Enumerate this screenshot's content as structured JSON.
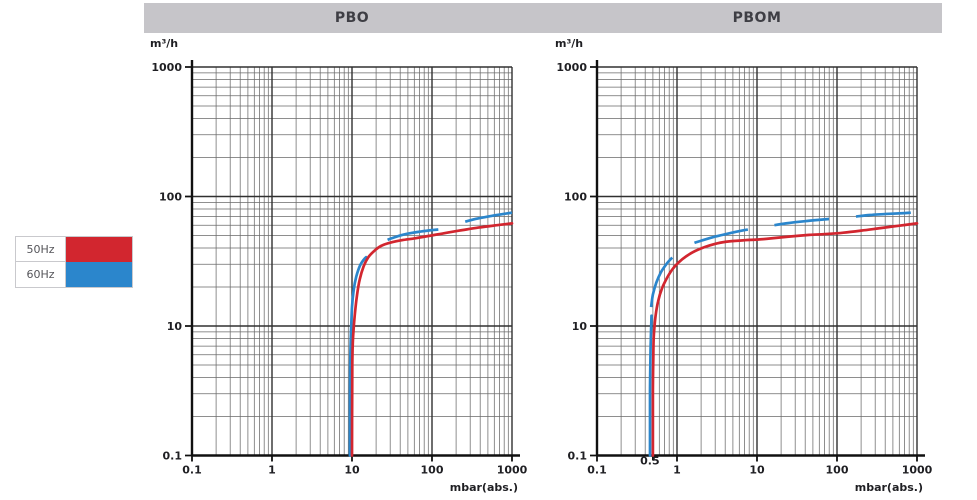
{
  "header": {
    "bar_color": "#c6c5c9",
    "titles": [
      {
        "label": "PBO"
      },
      {
        "label": "PBOM"
      }
    ]
  },
  "legend": {
    "items": [
      {
        "label": "50Hz",
        "color": "#d2262f"
      },
      {
        "label": "60Hz",
        "color": "#2b86cc"
      }
    ]
  },
  "chart_data": [
    {
      "type": "line",
      "title": "PBO",
      "x_label": "mbar(abs.)",
      "y_label": "m³/h",
      "x_scale": "log",
      "y_scale": "log",
      "xlim": [
        0.1,
        1000
      ],
      "ylim": [
        0.1,
        1000
      ],
      "x_tick_labels": [
        "0.1",
        "1",
        "10",
        "100",
        "1000"
      ],
      "y_tick_labels": [
        "1000",
        "100",
        "10",
        "0.1"
      ],
      "grid": "both-log-minor",
      "series": [
        {
          "name": "50Hz",
          "color": "#d2262f",
          "line_style": "solid",
          "points": [
            [
              10,
              0.1
            ],
            [
              10.05,
              1
            ],
            [
              10.1,
              2.5
            ],
            [
              10.2,
              5
            ],
            [
              10.4,
              8
            ],
            [
              10.8,
              12
            ],
            [
              11.5,
              17
            ],
            [
              12.5,
              23
            ],
            [
              14,
              29
            ],
            [
              16,
              34
            ],
            [
              19,
              38
            ],
            [
              23,
              41.5
            ],
            [
              30,
              44
            ],
            [
              42,
              46
            ],
            [
              60,
              47.5
            ],
            [
              90,
              49.5
            ],
            [
              140,
              52
            ],
            [
              220,
              54.5
            ],
            [
              380,
              57.5
            ],
            [
              650,
              60
            ],
            [
              1000,
              62
            ]
          ]
        },
        {
          "name": "60Hz",
          "color": "#2b86cc",
          "line_style": "solid_steep_then_long_dashes",
          "solid_points": [
            [
              9.4,
              0.1
            ],
            [
              9.45,
              1
            ],
            [
              9.5,
              2.5
            ],
            [
              9.6,
              5
            ],
            [
              9.75,
              9
            ],
            [
              10,
              14
            ],
            [
              10.5,
              19
            ],
            [
              11.3,
              24
            ],
            [
              12.5,
              29
            ],
            [
              14,
              32.5
            ],
            [
              15,
              34
            ]
          ],
          "dashed_points": [
            [
              15,
              34
            ],
            [
              17,
              37.5
            ],
            [
              20,
              41
            ],
            [
              25,
              44.8
            ],
            [
              31,
              47.5
            ],
            [
              45,
              51
            ],
            [
              70,
              53.5
            ],
            [
              100,
              55
            ],
            [
              140,
              56.5
            ],
            [
              220,
              62
            ],
            [
              330,
              66.5
            ],
            [
              500,
              70
            ],
            [
              700,
              72.5
            ],
            [
              1000,
              75
            ]
          ]
        }
      ]
    },
    {
      "type": "line",
      "title": "PBOM",
      "x_label": "mbar(abs.)",
      "y_label": "m³/h",
      "x_scale": "log",
      "y_scale": "log",
      "xlim": [
        0.1,
        1000
      ],
      "ylim": [
        0.1,
        1000
      ],
      "x_tick_labels": [
        "0.1",
        "1",
        "10",
        "100",
        "1000"
      ],
      "extra_x_tick": {
        "label": "0.5",
        "value": 0.5
      },
      "y_tick_labels": [
        "1000",
        "100",
        "10",
        "0.1"
      ],
      "grid": "both-log-minor",
      "series": [
        {
          "name": "50Hz",
          "color": "#d2262f",
          "line_style": "solid",
          "points": [
            [
              0.5,
              0.1
            ],
            [
              0.5,
              1
            ],
            [
              0.505,
              3
            ],
            [
              0.51,
              6
            ],
            [
              0.52,
              9
            ],
            [
              0.54,
              12
            ],
            [
              0.58,
              15.5
            ],
            [
              0.65,
              19.5
            ],
            [
              0.75,
              23.5
            ],
            [
              0.88,
              27.5
            ],
            [
              1.05,
              31
            ],
            [
              1.3,
              34.5
            ],
            [
              1.7,
              38
            ],
            [
              2.3,
              41
            ],
            [
              3.2,
              43.5
            ],
            [
              4.5,
              45
            ],
            [
              7,
              46
            ],
            [
              10,
              46.5
            ],
            [
              15,
              47.5
            ],
            [
              25,
              49
            ],
            [
              45,
              50.5
            ],
            [
              80,
              51.5
            ],
            [
              120,
              52.5
            ],
            [
              200,
              54.5
            ],
            [
              350,
              57
            ],
            [
              600,
              59.5
            ],
            [
              1000,
              62
            ]
          ]
        },
        {
          "name": "60Hz",
          "color": "#2b86cc",
          "line_style": "solid_steep_then_long_dashes",
          "solid_points": [
            [
              0.46,
              0.1
            ],
            [
              0.46,
              1
            ],
            [
              0.465,
              3
            ],
            [
              0.47,
              6
            ],
            [
              0.475,
              9
            ],
            [
              0.48,
              12
            ]
          ],
          "dashed_points": [
            [
              0.475,
              14
            ],
            [
              0.5,
              17.5
            ],
            [
              0.55,
              21.5
            ],
            [
              0.63,
              26
            ],
            [
              0.75,
              30.5
            ],
            [
              0.88,
              34
            ],
            [
              0.98,
              36.5
            ],
            [
              1.25,
              40.5
            ],
            [
              1.6,
              43.5
            ],
            [
              2.1,
              46
            ],
            [
              3,
              49
            ],
            [
              4.5,
              52
            ],
            [
              7,
              55
            ],
            [
              10,
              57
            ],
            [
              15,
              59.5
            ],
            [
              23,
              62
            ],
            [
              40,
              64.5
            ],
            [
              70,
              66.5
            ],
            [
              105,
              68
            ],
            [
              170,
              70
            ],
            [
              260,
              72
            ],
            [
              450,
              73.5
            ],
            [
              700,
              74.5
            ],
            [
              1000,
              75.5
            ]
          ]
        }
      ]
    }
  ]
}
